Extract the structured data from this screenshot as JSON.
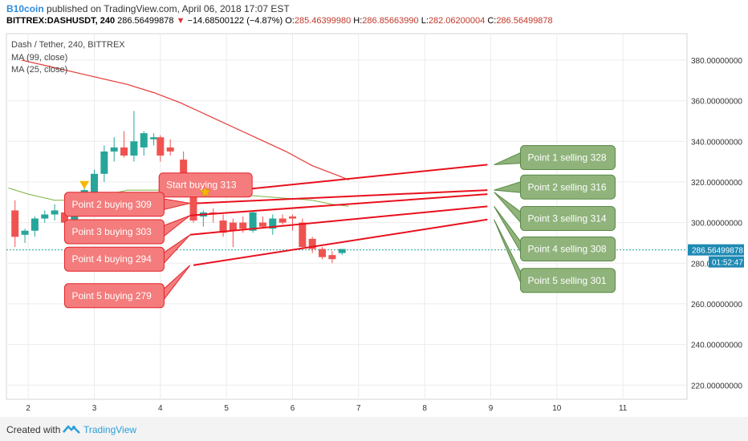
{
  "header": {
    "author": "B10coin",
    "published": "published on TradingView.com, April 06, 2018 17:07 EST",
    "symbol": "BITTREX:DASHUSDT, 240",
    "price": "286.56499878",
    "change": "−14.68500122 (−4.87%)",
    "o_label": "O:",
    "o_value": "285.46399980",
    "h_label": "H:",
    "h_value": "286.85663990",
    "l_label": "L:",
    "l_value": "282.06200004",
    "c_label": "C:",
    "c_value": "286.56499878"
  },
  "legend": {
    "title": "Dash / Tether, 240, BITTREX",
    "ma99": "MA (99, close)",
    "ma25": "MA (25, close)"
  },
  "price_tag": "286.56499878",
  "time_tag": "01:52:47",
  "footer": {
    "created": "Created with",
    "brand": "TradingView"
  },
  "colors": {
    "up": "#26a69a",
    "down": "#ef5350",
    "ma99": "#e53935",
    "ma25": "#7cb342",
    "callout_red": "#f47c7c",
    "callout_green": "#8fb37b",
    "line": "#e8101d",
    "axis_tag": "#1e8ab4"
  },
  "chart_data": {
    "type": "candlestick",
    "x_ticks": [
      "2",
      "3",
      "4",
      "5",
      "6",
      "7",
      "8",
      "9",
      "10",
      "11"
    ],
    "y_ticks": [
      "220.00000000",
      "240.00000000",
      "260.00000000",
      "280.00000000",
      "300.00000000",
      "320.00000000",
      "340.00000000",
      "360.00000000",
      "380.00000000"
    ],
    "ylim": [
      213,
      393
    ],
    "xlim": [
      1.67,
      11.97
    ],
    "current_price": 286.565,
    "candles": [
      {
        "x": 1.8,
        "o": 306,
        "h": 311,
        "l": 288,
        "c": 293
      },
      {
        "x": 1.95,
        "o": 294,
        "h": 297,
        "l": 290,
        "c": 296
      },
      {
        "x": 2.1,
        "o": 296,
        "h": 303,
        "l": 293,
        "c": 302
      },
      {
        "x": 2.25,
        "o": 302,
        "h": 306,
        "l": 300,
        "c": 304
      },
      {
        "x": 2.4,
        "o": 304,
        "h": 309,
        "l": 301,
        "c": 306
      },
      {
        "x": 2.55,
        "o": 305,
        "h": 307,
        "l": 296,
        "c": 300
      },
      {
        "x": 2.7,
        "o": 300,
        "h": 310,
        "l": 298,
        "c": 307
      },
      {
        "x": 2.85,
        "o": 306,
        "h": 318,
        "l": 304,
        "c": 316
      },
      {
        "x": 3.0,
        "o": 314,
        "h": 326,
        "l": 312,
        "c": 324
      },
      {
        "x": 3.15,
        "o": 324,
        "h": 338,
        "l": 320,
        "c": 335
      },
      {
        "x": 3.3,
        "o": 335,
        "h": 342,
        "l": 330,
        "c": 337
      },
      {
        "x": 3.45,
        "o": 337,
        "h": 345,
        "l": 332,
        "c": 333
      },
      {
        "x": 3.6,
        "o": 333,
        "h": 355,
        "l": 330,
        "c": 340
      },
      {
        "x": 3.75,
        "o": 337,
        "h": 345,
        "l": 333,
        "c": 344
      },
      {
        "x": 3.9,
        "o": 341,
        "h": 344,
        "l": 338,
        "c": 342
      },
      {
        "x": 4.0,
        "o": 342,
        "h": 343,
        "l": 330,
        "c": 333
      },
      {
        "x": 4.15,
        "o": 337,
        "h": 341,
        "l": 333,
        "c": 335
      },
      {
        "x": 4.35,
        "o": 331,
        "h": 335,
        "l": 314,
        "c": 317
      },
      {
        "x": 4.5,
        "o": 318,
        "h": 321,
        "l": 300,
        "c": 301
      },
      {
        "x": 4.65,
        "o": 303,
        "h": 306,
        "l": 298,
        "c": 305
      },
      {
        "x": 4.8,
        "o": 305,
        "h": 307,
        "l": 300,
        "c": 304
      },
      {
        "x": 4.95,
        "o": 301,
        "h": 304,
        "l": 293,
        "c": 295
      },
      {
        "x": 5.1,
        "o": 300,
        "h": 302,
        "l": 288,
        "c": 296
      },
      {
        "x": 5.25,
        "o": 300,
        "h": 303,
        "l": 295,
        "c": 297
      },
      {
        "x": 5.4,
        "o": 296,
        "h": 306,
        "l": 295,
        "c": 305
      },
      {
        "x": 5.55,
        "o": 300,
        "h": 303,
        "l": 297,
        "c": 298
      },
      {
        "x": 5.7,
        "o": 297,
        "h": 304,
        "l": 294,
        "c": 302
      },
      {
        "x": 5.85,
        "o": 302,
        "h": 304,
        "l": 299,
        "c": 300
      },
      {
        "x": 6.0,
        "o": 303,
        "h": 304,
        "l": 296,
        "c": 302
      },
      {
        "x": 6.15,
        "o": 300,
        "h": 302,
        "l": 287,
        "c": 288
      },
      {
        "x": 6.3,
        "o": 292,
        "h": 293,
        "l": 285,
        "c": 287
      },
      {
        "x": 6.45,
        "o": 287,
        "h": 288,
        "l": 282,
        "c": 283
      },
      {
        "x": 6.6,
        "o": 284,
        "h": 286,
        "l": 280,
        "c": 282
      },
      {
        "x": 6.75,
        "o": 285,
        "h": 287,
        "l": 284,
        "c": 287
      }
    ],
    "ma99": [
      [
        1.9,
        380
      ],
      [
        2.3,
        377
      ],
      [
        2.7,
        374
      ],
      [
        3.1,
        371
      ],
      [
        3.5,
        368
      ],
      [
        3.9,
        364
      ],
      [
        4.3,
        359
      ],
      [
        4.7,
        353
      ],
      [
        5.1,
        347
      ],
      [
        5.5,
        341
      ],
      [
        5.9,
        335
      ],
      [
        6.3,
        328
      ],
      [
        6.7,
        323
      ],
      [
        6.85,
        321
      ]
    ],
    "ma25": [
      [
        1.7,
        317
      ],
      [
        2.0,
        314
      ],
      [
        2.4,
        311
      ],
      [
        2.8,
        311
      ],
      [
        3.1,
        313
      ],
      [
        3.5,
        316
      ],
      [
        3.9,
        316
      ],
      [
        4.3,
        316
      ],
      [
        4.7,
        315
      ],
      [
        5.1,
        314
      ],
      [
        5.5,
        313
      ],
      [
        5.9,
        312
      ],
      [
        6.3,
        311
      ],
      [
        6.6,
        309
      ],
      [
        6.85,
        308
      ]
    ],
    "markers": [
      {
        "type": "triangle-down",
        "x": 2.85,
        "y": 318.5,
        "color": "#f5b800"
      },
      {
        "type": "star",
        "x": 4.68,
        "y": 315,
        "color": "#f5b800"
      }
    ],
    "trend_lines": [
      {
        "x1": 4.72,
        "y1": 314.5,
        "x2": 8.95,
        "y2": 328.5
      },
      {
        "x1": 4.55,
        "y1": 309.5,
        "x2": 8.95,
        "y2": 316
      },
      {
        "x1": 4.45,
        "y1": 303.5,
        "x2": 8.95,
        "y2": 314
      },
      {
        "x1": 4.45,
        "y1": 294,
        "x2": 8.95,
        "y2": 308
      },
      {
        "x1": 4.5,
        "y1": 279,
        "x2": 8.95,
        "y2": 301.5
      }
    ],
    "callouts": [
      {
        "text": "Start buying 313",
        "color": "red",
        "bx": 3.98,
        "by": 318.5,
        "w": 116,
        "tip_x": 4.68,
        "tip_y": 315,
        "tail": "bottom-left"
      },
      {
        "text": "Point 2 buying 309",
        "color": "red",
        "bx": 2.55,
        "by": 309,
        "w": 124,
        "tip_x": 4.45,
        "tip_y": 309.5,
        "tail": "right"
      },
      {
        "text": "Point 3 buying 303",
        "color": "red",
        "bx": 2.55,
        "by": 295.5,
        "w": 124,
        "tip_x": 4.45,
        "tip_y": 303.5,
        "tail": "right-up"
      },
      {
        "text": "Point 4 buying 294",
        "color": "red",
        "bx": 2.55,
        "by": 282,
        "w": 124,
        "tip_x": 4.45,
        "tip_y": 294,
        "tail": "right-up"
      },
      {
        "text": "Point 5 buying 279",
        "color": "red",
        "bx": 2.55,
        "by": 264,
        "w": 124,
        "tip_x": 4.45,
        "tip_y": 279,
        "tail": "right-up"
      },
      {
        "text": "Point 1 selling 328",
        "color": "green",
        "bx": 9.45,
        "by": 332,
        "w": 118,
        "tip_x": 9.05,
        "tip_y": 328.5,
        "tail": "left-down"
      },
      {
        "text": "Point 2 selling 316",
        "color": "green",
        "bx": 9.45,
        "by": 317.5,
        "w": 118,
        "tip_x": 9.05,
        "tip_y": 316,
        "tail": "left-down"
      },
      {
        "text": "Point 3 selling 314",
        "color": "green",
        "bx": 9.45,
        "by": 302,
        "w": 118,
        "tip_x": 9.05,
        "tip_y": 315,
        "tail": "left-up"
      },
      {
        "text": "Point 4 selling 308",
        "color": "green",
        "bx": 9.45,
        "by": 287,
        "w": 118,
        "tip_x": 9.05,
        "tip_y": 308,
        "tail": "left-up"
      },
      {
        "text": "Point 5 selling 301",
        "color": "green",
        "bx": 9.45,
        "by": 271.5,
        "w": 118,
        "tip_x": 9.05,
        "tip_y": 301.5,
        "tail": "left-up"
      }
    ]
  }
}
